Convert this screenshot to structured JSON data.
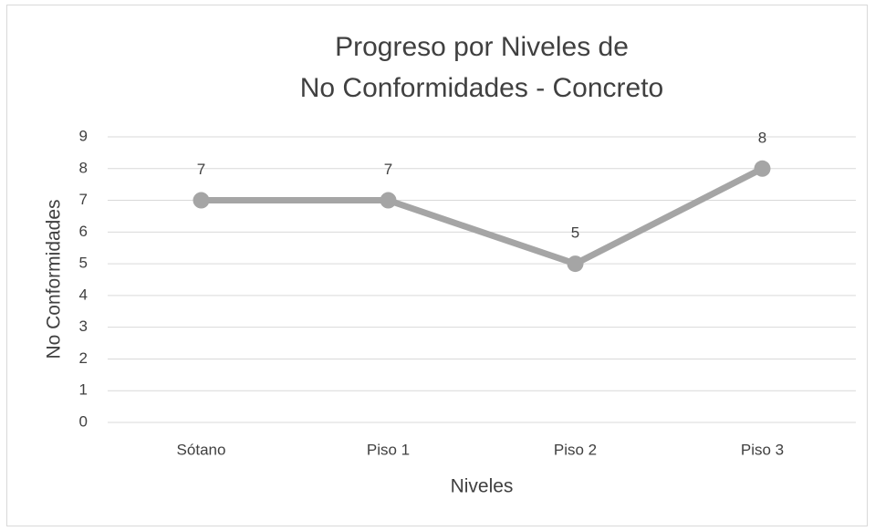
{
  "chart_data": {
    "type": "line",
    "title": [
      "Progreso por Niveles de",
      "No Conformidades - Concreto"
    ],
    "x_label": "Niveles",
    "y_label": "No Conformidades",
    "categories": [
      "Sótano",
      "Piso 1",
      "Piso 2",
      "Piso 3"
    ],
    "series": [
      {
        "name": "No Conformidades",
        "color": "#a5a5a5",
        "values": [
          7,
          7,
          5,
          8
        ]
      }
    ],
    "ylim": [
      0,
      9
    ],
    "yticks": [
      0,
      1,
      2,
      3,
      4,
      5,
      6,
      7,
      8,
      9
    ],
    "grid": true
  }
}
